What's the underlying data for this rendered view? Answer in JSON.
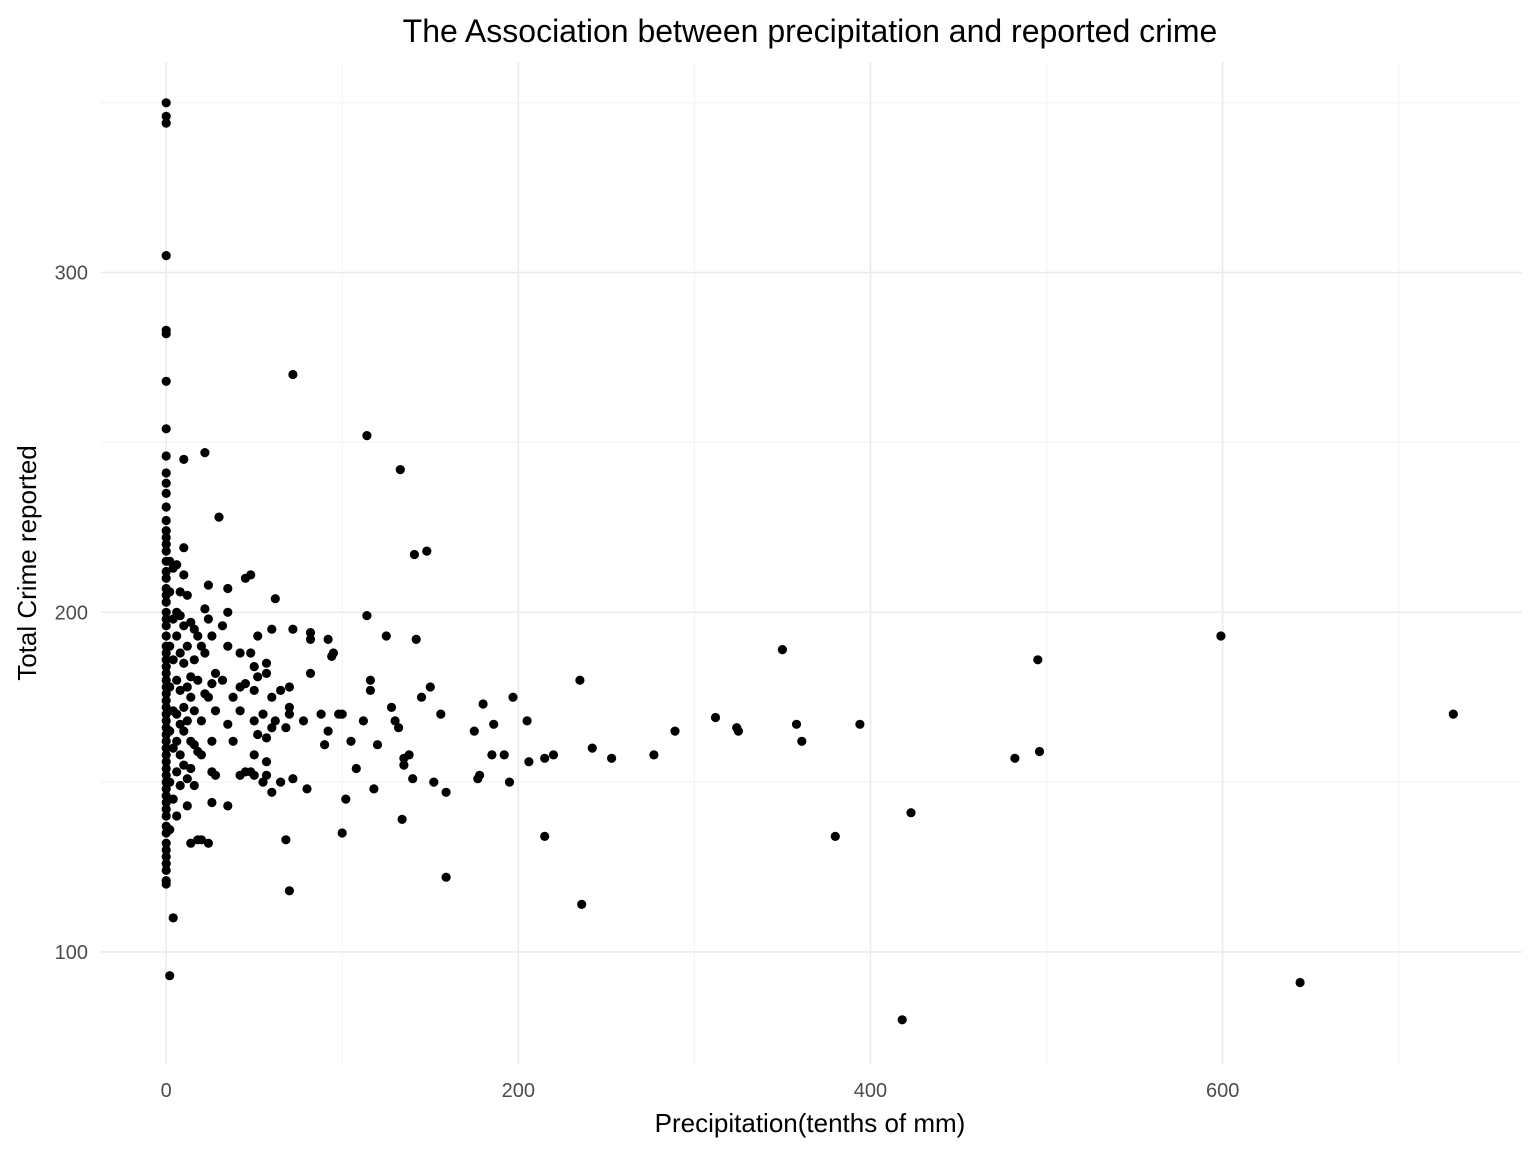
{
  "chart_data": {
    "type": "scatter",
    "title": "The Association between precipitation and reported crime",
    "xlabel": "Precipitation(tenths of mm)",
    "ylabel": "Total Crime reported",
    "xlim": [
      -37,
      770
    ],
    "ylim": [
      67,
      362
    ],
    "x_ticks": [
      0,
      200,
      400,
      600
    ],
    "x_minor_ticks": [
      100,
      300,
      500,
      700
    ],
    "y_ticks": [
      100,
      200,
      300
    ],
    "y_minor_ticks": [
      150,
      250,
      350
    ],
    "grid": true,
    "legend": "none",
    "point_color": "#000000",
    "series": [
      {
        "points": [
          [
            0,
            350
          ],
          [
            0,
            346
          ],
          [
            0,
            344
          ],
          [
            0,
            305
          ],
          [
            0,
            283
          ],
          [
            0,
            282
          ],
          [
            0,
            268
          ],
          [
            0,
            254
          ],
          [
            0,
            246
          ],
          [
            0,
            241
          ],
          [
            0,
            238
          ],
          [
            0,
            235
          ],
          [
            0,
            231
          ],
          [
            0,
            227
          ],
          [
            0,
            224
          ],
          [
            0,
            222
          ],
          [
            0,
            220
          ],
          [
            0,
            218
          ],
          [
            0,
            215
          ],
          [
            0,
            212
          ],
          [
            0,
            210
          ],
          [
            0,
            207
          ],
          [
            0,
            205
          ],
          [
            0,
            203
          ],
          [
            0,
            200
          ],
          [
            0,
            198
          ],
          [
            0,
            196
          ],
          [
            0,
            193
          ],
          [
            0,
            190
          ],
          [
            0,
            188
          ],
          [
            0,
            186
          ],
          [
            0,
            184
          ],
          [
            0,
            182
          ],
          [
            0,
            180
          ],
          [
            0,
            178
          ],
          [
            0,
            176
          ],
          [
            0,
            174
          ],
          [
            0,
            172
          ],
          [
            0,
            170
          ],
          [
            0,
            168
          ],
          [
            0,
            166
          ],
          [
            0,
            164
          ],
          [
            0,
            162
          ],
          [
            0,
            160
          ],
          [
            0,
            158
          ],
          [
            0,
            156
          ],
          [
            0,
            154
          ],
          [
            0,
            152
          ],
          [
            0,
            150
          ],
          [
            0,
            148
          ],
          [
            0,
            146
          ],
          [
            0,
            144
          ],
          [
            0,
            142
          ],
          [
            0,
            140
          ],
          [
            0,
            137
          ],
          [
            0,
            135
          ],
          [
            0,
            132
          ],
          [
            0,
            130
          ],
          [
            0,
            128
          ],
          [
            0,
            126
          ],
          [
            0,
            124
          ],
          [
            0,
            121
          ],
          [
            0,
            120
          ],
          [
            2,
            215
          ],
          [
            2,
            206
          ],
          [
            2,
            190
          ],
          [
            2,
            178
          ],
          [
            2,
            165
          ],
          [
            2,
            150
          ],
          [
            2,
            136
          ],
          [
            2,
            93
          ],
          [
            4,
            213
          ],
          [
            4,
            198
          ],
          [
            4,
            186
          ],
          [
            4,
            171
          ],
          [
            4,
            160
          ],
          [
            4,
            145
          ],
          [
            4,
            110
          ],
          [
            6,
            214
          ],
          [
            6,
            200
          ],
          [
            6,
            193
          ],
          [
            6,
            180
          ],
          [
            6,
            170
          ],
          [
            6,
            162
          ],
          [
            6,
            153
          ],
          [
            6,
            140
          ],
          [
            8,
            206
          ],
          [
            8,
            199
          ],
          [
            8,
            188
          ],
          [
            8,
            177
          ],
          [
            8,
            167
          ],
          [
            8,
            158
          ],
          [
            8,
            149
          ],
          [
            10,
            245
          ],
          [
            10,
            219
          ],
          [
            10,
            211
          ],
          [
            10,
            196
          ],
          [
            10,
            185
          ],
          [
            10,
            172
          ],
          [
            10,
            165
          ],
          [
            10,
            155
          ],
          [
            12,
            205
          ],
          [
            12,
            190
          ],
          [
            12,
            178
          ],
          [
            12,
            168
          ],
          [
            12,
            151
          ],
          [
            12,
            143
          ],
          [
            14,
            197
          ],
          [
            14,
            181
          ],
          [
            14,
            175
          ],
          [
            14,
            162
          ],
          [
            14,
            154
          ],
          [
            14,
            132
          ],
          [
            16,
            195
          ],
          [
            16,
            186
          ],
          [
            16,
            171
          ],
          [
            16,
            161
          ],
          [
            16,
            149
          ],
          [
            18,
            193
          ],
          [
            18,
            180
          ],
          [
            18,
            159
          ],
          [
            18,
            133
          ],
          [
            20,
            190
          ],
          [
            20,
            168
          ],
          [
            20,
            158
          ],
          [
            20,
            133
          ],
          [
            22,
            247
          ],
          [
            22,
            201
          ],
          [
            22,
            188
          ],
          [
            22,
            176
          ],
          [
            24,
            208
          ],
          [
            24,
            198
          ],
          [
            24,
            175
          ],
          [
            24,
            132
          ],
          [
            26,
            193
          ],
          [
            26,
            179
          ],
          [
            26,
            162
          ],
          [
            26,
            153
          ],
          [
            26,
            144
          ],
          [
            28,
            182
          ],
          [
            28,
            171
          ],
          [
            28,
            152
          ],
          [
            30,
            228
          ],
          [
            32,
            196
          ],
          [
            32,
            180
          ],
          [
            35,
            207
          ],
          [
            35,
            200
          ],
          [
            35,
            190
          ],
          [
            35,
            167
          ],
          [
            35,
            143
          ],
          [
            38,
            175
          ],
          [
            38,
            162
          ],
          [
            42,
            188
          ],
          [
            42,
            178
          ],
          [
            42,
            171
          ],
          [
            42,
            152
          ],
          [
            45,
            210
          ],
          [
            45,
            179
          ],
          [
            45,
            153
          ],
          [
            48,
            211
          ],
          [
            48,
            188
          ],
          [
            48,
            153
          ],
          [
            50,
            184
          ],
          [
            50,
            177
          ],
          [
            50,
            168
          ],
          [
            50,
            158
          ],
          [
            50,
            152
          ],
          [
            52,
            193
          ],
          [
            52,
            181
          ],
          [
            52,
            164
          ],
          [
            55,
            170
          ],
          [
            55,
            150
          ],
          [
            57,
            185
          ],
          [
            57,
            182
          ],
          [
            57,
            163
          ],
          [
            57,
            156
          ],
          [
            57,
            152
          ],
          [
            60,
            195
          ],
          [
            60,
            175
          ],
          [
            60,
            166
          ],
          [
            60,
            147
          ],
          [
            62,
            204
          ],
          [
            62,
            168
          ],
          [
            65,
            177
          ],
          [
            65,
            150
          ],
          [
            68,
            166
          ],
          [
            68,
            133
          ],
          [
            70,
            178
          ],
          [
            70,
            172
          ],
          [
            70,
            170
          ],
          [
            70,
            118
          ],
          [
            72,
            270
          ],
          [
            72,
            195
          ],
          [
            72,
            151
          ],
          [
            78,
            168
          ],
          [
            80,
            148
          ],
          [
            82,
            192
          ],
          [
            82,
            182
          ],
          [
            82,
            194
          ],
          [
            88,
            170
          ],
          [
            90,
            161
          ],
          [
            92,
            192
          ],
          [
            92,
            165
          ],
          [
            94,
            187
          ],
          [
            95,
            188
          ],
          [
            98,
            170
          ],
          [
            100,
            135
          ],
          [
            100,
            170
          ],
          [
            102,
            145
          ],
          [
            105,
            162
          ],
          [
            108,
            154
          ],
          [
            112,
            168
          ],
          [
            114,
            199
          ],
          [
            114,
            252
          ],
          [
            116,
            180
          ],
          [
            116,
            177
          ],
          [
            118,
            148
          ],
          [
            120,
            161
          ],
          [
            125,
            193
          ],
          [
            128,
            172
          ],
          [
            130,
            168
          ],
          [
            132,
            166
          ],
          [
            133,
            242
          ],
          [
            134,
            139
          ],
          [
            135,
            157
          ],
          [
            135,
            155
          ],
          [
            138,
            158
          ],
          [
            140,
            151
          ],
          [
            141,
            217
          ],
          [
            142,
            192
          ],
          [
            145,
            175
          ],
          [
            148,
            218
          ],
          [
            150,
            178
          ],
          [
            152,
            150
          ],
          [
            156,
            170
          ],
          [
            159,
            147
          ],
          [
            159,
            122
          ],
          [
            175,
            165
          ],
          [
            177,
            151
          ],
          [
            178,
            152
          ],
          [
            180,
            173
          ],
          [
            185,
            158
          ],
          [
            186,
            167
          ],
          [
            192,
            158
          ],
          [
            195,
            150
          ],
          [
            197,
            175
          ],
          [
            205,
            168
          ],
          [
            206,
            156
          ],
          [
            215,
            157
          ],
          [
            215,
            134
          ],
          [
            220,
            158
          ],
          [
            235,
            180
          ],
          [
            236,
            114
          ],
          [
            242,
            160
          ],
          [
            253,
            157
          ],
          [
            277,
            158
          ],
          [
            289,
            165
          ],
          [
            312,
            169
          ],
          [
            324,
            166
          ],
          [
            325,
            165
          ],
          [
            350,
            189
          ],
          [
            358,
            167
          ],
          [
            361,
            162
          ],
          [
            380,
            134
          ],
          [
            394,
            167
          ],
          [
            418,
            80
          ],
          [
            423,
            141
          ],
          [
            482,
            157
          ],
          [
            495,
            186
          ],
          [
            496,
            159
          ],
          [
            599,
            193
          ],
          [
            644,
            91
          ],
          [
            731,
            170
          ]
        ]
      }
    ]
  }
}
